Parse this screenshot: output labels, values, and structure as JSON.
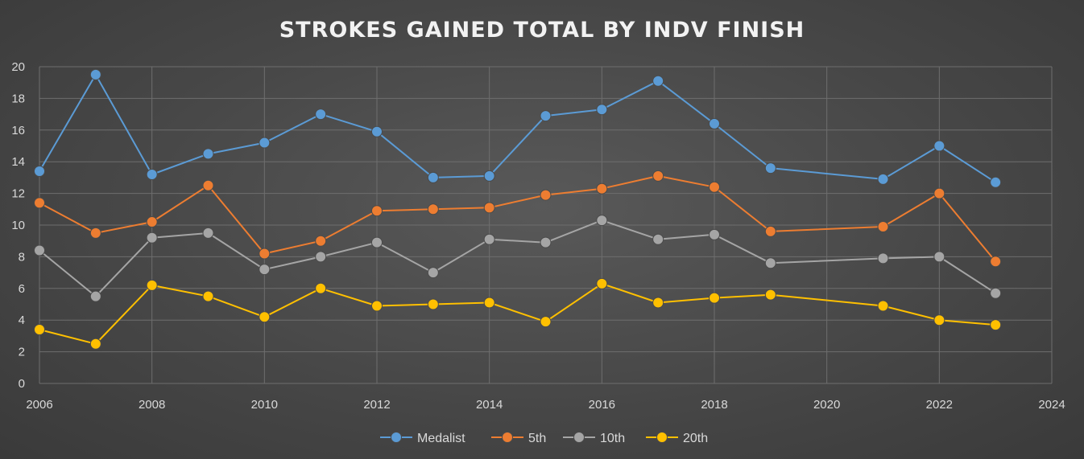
{
  "chart_data": {
    "type": "line",
    "title": "STROKES GAINED TOTAL BY INDV FINISH",
    "xlabel": "",
    "ylabel": "",
    "xlim": [
      2006,
      2024
    ],
    "ylim": [
      0,
      20
    ],
    "x_ticks": [
      2006,
      2008,
      2010,
      2012,
      2014,
      2016,
      2018,
      2020,
      2022,
      2024
    ],
    "y_ticks": [
      0,
      2,
      4,
      6,
      8,
      10,
      12,
      14,
      16,
      18,
      20
    ],
    "grid": true,
    "legend_position": "bottom",
    "x": [
      2006,
      2007,
      2008,
      2009,
      2010,
      2011,
      2012,
      2013,
      2014,
      2015,
      2016,
      2017,
      2018,
      2019,
      2021,
      2022,
      2023
    ],
    "series": [
      {
        "name": "Medalist",
        "color": "#5b9bd5",
        "values": [
          13.4,
          19.5,
          13.2,
          14.5,
          15.2,
          17.0,
          15.9,
          13.0,
          13.1,
          16.9,
          17.3,
          19.1,
          16.4,
          13.6,
          12.9,
          15.0,
          12.7
        ]
      },
      {
        "name": "5th",
        "color": "#ed7d31",
        "values": [
          11.4,
          9.5,
          10.2,
          12.5,
          8.2,
          9.0,
          10.9,
          11.0,
          11.1,
          11.9,
          12.3,
          13.1,
          12.4,
          9.6,
          9.9,
          12.0,
          7.7
        ]
      },
      {
        "name": "10th",
        "color": "#a5a5a5",
        "values": [
          8.4,
          5.5,
          9.2,
          9.5,
          7.2,
          8.0,
          8.9,
          7.0,
          9.1,
          8.9,
          10.3,
          9.1,
          9.4,
          7.6,
          7.9,
          8.0,
          5.7
        ]
      },
      {
        "name": "20th",
        "color": "#ffc000",
        "values": [
          3.4,
          2.5,
          6.2,
          5.5,
          4.2,
          6.0,
          4.9,
          5.0,
          5.1,
          3.9,
          6.3,
          5.1,
          5.4,
          5.6,
          4.9,
          4.0,
          3.7
        ]
      }
    ]
  }
}
